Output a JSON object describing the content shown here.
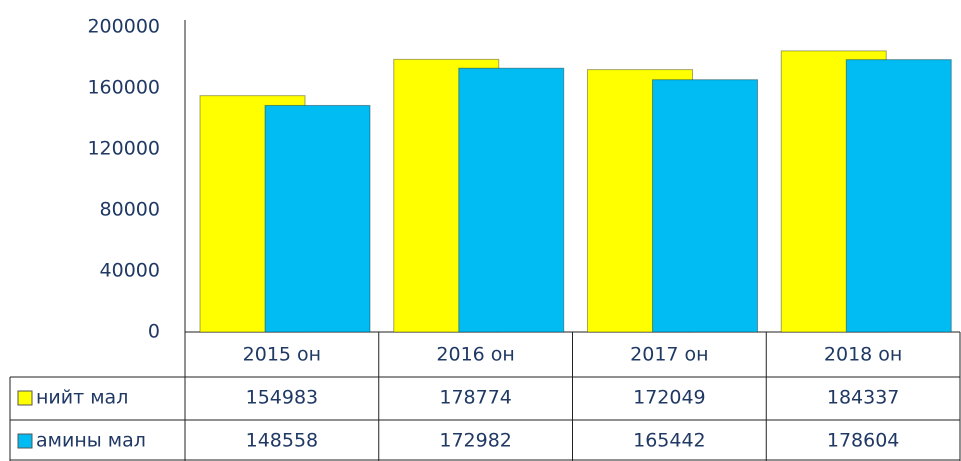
{
  "chart_data": {
    "type": "bar",
    "categories": [
      "2015 он",
      "2016 он",
      "2017 он",
      "2018 он"
    ],
    "series": [
      {
        "name": "нийт мал",
        "color": "#ffff00",
        "values": [
          154983,
          178774,
          172049,
          184337
        ]
      },
      {
        "name": "амины мал",
        "color": "#00bcf2",
        "values": [
          148558,
          172982,
          165442,
          178604
        ]
      }
    ],
    "ylim": [
      0,
      200000
    ],
    "yticks": [
      0,
      40000,
      80000,
      120000,
      160000,
      200000
    ],
    "grid": false
  }
}
